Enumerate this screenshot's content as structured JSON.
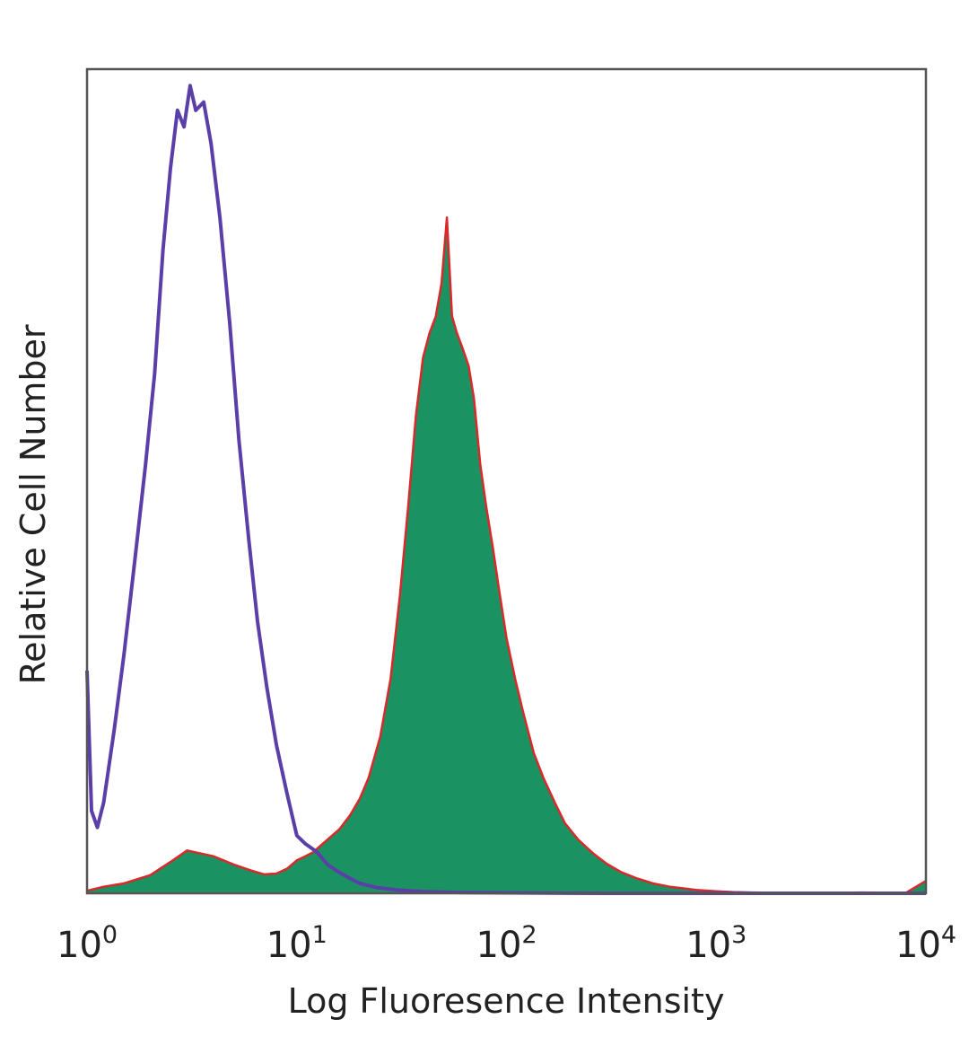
{
  "chart_data": {
    "type": "area",
    "title": "",
    "xlabel": "Log Fluoresence Intensity",
    "ylabel": "Relative Cell Number",
    "x_scale": "log",
    "xlim": [
      1,
      10000
    ],
    "ylim": [
      0,
      100
    ],
    "grid": false,
    "legend": "none",
    "x_ticks": [
      {
        "value": 1,
        "base": "10",
        "exp": "0"
      },
      {
        "value": 10,
        "base": "10",
        "exp": "1"
      },
      {
        "value": 100,
        "base": "10",
        "exp": "2"
      },
      {
        "value": 1000,
        "base": "10",
        "exp": "3"
      },
      {
        "value": 10000,
        "base": "10",
        "exp": "4"
      }
    ],
    "series": [
      {
        "style": "outline",
        "color": "#5b3fa8",
        "x": [
          1,
          1.05,
          1.12,
          1.2,
          1.35,
          1.5,
          1.7,
          1.9,
          2.1,
          2.3,
          2.5,
          2.7,
          2.9,
          3.1,
          3.3,
          3.6,
          3.9,
          4.3,
          4.8,
          5.3,
          5.9,
          6.5,
          7.2,
          8,
          9,
          10,
          11,
          12.5,
          14,
          16,
          18,
          20,
          24,
          30,
          40,
          60,
          100,
          300,
          1000,
          10000
        ],
        "y": [
          27,
          10,
          8,
          11,
          20,
          29,
          41,
          52,
          63,
          78,
          88,
          95,
          93,
          98,
          95,
          96,
          91,
          82,
          69,
          55,
          43,
          33,
          25,
          18,
          12,
          7,
          6,
          5,
          3.5,
          2.5,
          1.8,
          1.2,
          0.7,
          0.4,
          0.2,
          0.1,
          0.05,
          0,
          0,
          0
        ]
      },
      {
        "style": "filled",
        "color": "#1b9262",
        "stroke": "#d8292b",
        "x": [
          1,
          1.2,
          1.5,
          2,
          2.5,
          3,
          4,
          5,
          6,
          7,
          8,
          9,
          10,
          11,
          12,
          13,
          14,
          16,
          18,
          20,
          22,
          25,
          28,
          31,
          34,
          37,
          40,
          43,
          46,
          49,
          52,
          55,
          58,
          62,
          66,
          70,
          75,
          80,
          86,
          92,
          100,
          110,
          120,
          135,
          150,
          170,
          190,
          220,
          260,
          300,
          350,
          420,
          500,
          600,
          700,
          800,
          1000,
          1200,
          1500,
          2000,
          3000,
          5000,
          8000,
          10000
        ],
        "y": [
          0.3,
          0.8,
          1.2,
          2.2,
          3.8,
          5.2,
          4.5,
          3.5,
          2.8,
          2.3,
          2.4,
          3,
          4,
          4.5,
          5,
          5.8,
          6.5,
          7.8,
          9.5,
          11.5,
          14,
          19,
          26,
          36,
          47,
          58,
          65,
          68,
          70,
          74,
          82,
          70,
          68,
          66,
          64,
          60,
          52,
          47,
          42,
          37,
          31,
          26,
          22,
          17,
          14,
          11,
          8.5,
          6.5,
          4.8,
          3.6,
          2.6,
          1.8,
          1.2,
          0.8,
          0.6,
          0.4,
          0.25,
          0.15,
          0.1,
          0.05,
          0.03,
          0.1,
          0.03,
          1.5
        ]
      }
    ]
  }
}
